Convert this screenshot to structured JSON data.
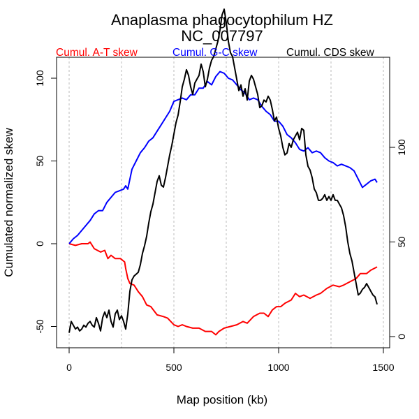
{
  "chart_data": {
    "type": "line",
    "title": "Anaplasma phagocytophilum HZ",
    "subtitle": "NC_007797",
    "xlabel": "Map position (kb)",
    "ylabel": "Cumulated normalized skew",
    "xlim": [
      -40,
      1520
    ],
    "ylim_left": [
      -62,
      112
    ],
    "ylim_right": [
      -4,
      150
    ],
    "x_ticks": [
      "0",
      "500",
      "1000",
      "1500"
    ],
    "x_tick_values": [
      0,
      500,
      1000,
      1500
    ],
    "y_left_ticks": [
      "-50",
      "0",
      "50",
      "100"
    ],
    "y_left_tick_values": [
      -50,
      0,
      50,
      100
    ],
    "y_right_ticks": [
      "0",
      "50",
      "100"
    ],
    "y_right_tick_values": [
      0,
      50,
      100
    ],
    "x_grid": [
      0,
      250,
      500,
      750,
      1000,
      1250,
      1500
    ],
    "grid": "vertical dashed",
    "legend_position": "top",
    "series": [
      {
        "name": "Cumul. A-T skew",
        "axis": "left",
        "color": "#ff0000",
        "x": [
          0,
          30,
          60,
          90,
          100,
          120,
          150,
          170,
          185,
          200,
          220,
          245,
          265,
          270,
          280,
          290,
          310,
          330,
          350,
          370,
          390,
          420,
          450,
          470,
          500,
          520,
          540,
          560,
          590,
          620,
          650,
          680,
          700,
          715,
          740,
          770,
          800,
          830,
          850,
          880,
          910,
          930,
          950,
          970,
          990,
          1010,
          1030,
          1060,
          1080,
          1100,
          1120,
          1150,
          1180,
          1200,
          1230,
          1260,
          1290,
          1310,
          1340,
          1370,
          1390,
          1420,
          1440,
          1470
        ],
        "y": [
          0,
          -1,
          0,
          0,
          1,
          -3,
          -5,
          -4,
          -9,
          -7,
          -9,
          -9,
          -11,
          -15,
          -21,
          -24,
          -25,
          -29,
          -32,
          -37,
          -38,
          -43,
          -44,
          -45,
          -49,
          -50,
          -49,
          -50,
          -51,
          -51,
          -53,
          -53,
          -55,
          -53,
          -51,
          -50,
          -49,
          -47,
          -48,
          -44,
          -42,
          -42,
          -44,
          -40,
          -38,
          -38,
          -36,
          -34,
          -30,
          -32,
          -31,
          -33,
          -31,
          -30,
          -27,
          -25,
          -26,
          -25,
          -23,
          -21,
          -18,
          -18,
          -16,
          -14
        ]
      },
      {
        "name": "Cumul. G-C skew",
        "axis": "left",
        "color": "#0000ff",
        "x": [
          0,
          20,
          40,
          60,
          80,
          100,
          120,
          140,
          160,
          180,
          200,
          220,
          240,
          260,
          270,
          280,
          300,
          320,
          340,
          360,
          380,
          400,
          420,
          440,
          460,
          480,
          500,
          520,
          540,
          560,
          580,
          600,
          620,
          640,
          660,
          680,
          700,
          720,
          740,
          760,
          780,
          800,
          820,
          840,
          860,
          880,
          900,
          920,
          940,
          960,
          980,
          1000,
          1020,
          1040,
          1060,
          1080,
          1100,
          1120,
          1140,
          1160,
          1180,
          1200,
          1220,
          1240,
          1260,
          1280,
          1300,
          1320,
          1340,
          1360,
          1380,
          1400,
          1420,
          1440,
          1460,
          1470
        ],
        "y": [
          0,
          3,
          5,
          8,
          11,
          14,
          18,
          20,
          20,
          25,
          28,
          31,
          32,
          33,
          35,
          33,
          45,
          50,
          55,
          58,
          62,
          64,
          68,
          72,
          76,
          80,
          86,
          87,
          88,
          87,
          90,
          90,
          94,
          94,
          98,
          96,
          101,
          104,
          103,
          100,
          99,
          96,
          93,
          91,
          87,
          88,
          87,
          83,
          80,
          78,
          74,
          74,
          71,
          66,
          64,
          61,
          57,
          56,
          58,
          55,
          56,
          55,
          52,
          50,
          49,
          47,
          48,
          47,
          46,
          44,
          39,
          34,
          36,
          38,
          39,
          37
        ]
      },
      {
        "name": "Cumul. CDS skew",
        "axis": "right",
        "color": "#000000",
        "x": [
          0,
          10,
          20,
          30,
          40,
          50,
          60,
          70,
          80,
          90,
          100,
          110,
          120,
          130,
          140,
          150,
          160,
          170,
          180,
          190,
          200,
          210,
          220,
          230,
          240,
          250,
          260,
          265,
          270,
          275,
          280,
          290,
          300,
          310,
          320,
          330,
          340,
          350,
          360,
          370,
          380,
          390,
          400,
          410,
          420,
          430,
          440,
          450,
          460,
          470,
          480,
          490,
          500,
          510,
          520,
          530,
          540,
          550,
          560,
          570,
          580,
          590,
          600,
          610,
          620,
          630,
          640,
          650,
          660,
          670,
          680,
          690,
          700,
          710,
          720,
          730,
          740,
          750,
          760,
          770,
          780,
          790,
          800,
          810,
          820,
          830,
          840,
          850,
          860,
          870,
          880,
          890,
          900,
          910,
          920,
          930,
          940,
          950,
          960,
          970,
          980,
          990,
          1000,
          1010,
          1020,
          1030,
          1040,
          1050,
          1060,
          1070,
          1080,
          1090,
          1100,
          1110,
          1120,
          1130,
          1140,
          1150,
          1160,
          1170,
          1180,
          1190,
          1200,
          1210,
          1220,
          1230,
          1240,
          1250,
          1260,
          1270,
          1280,
          1290,
          1300,
          1310,
          1320,
          1330,
          1340,
          1350,
          1360,
          1370,
          1380,
          1390,
          1400,
          1410,
          1420,
          1430,
          1440,
          1450,
          1460,
          1470
        ],
        "y": [
          2,
          8,
          6,
          4,
          5,
          3,
          4,
          6,
          5,
          7,
          8,
          6,
          5,
          10,
          7,
          3,
          10,
          13,
          10,
          14,
          8,
          5,
          12,
          14,
          9,
          11,
          8,
          6,
          4,
          8,
          12,
          24,
          30,
          32,
          33,
          34,
          38,
          44,
          48,
          53,
          60,
          66,
          70,
          76,
          82,
          85,
          80,
          79,
          84,
          90,
          96,
          101,
          107,
          113,
          117,
          124,
          132,
          136,
          141,
          138,
          132,
          128,
          134,
          136,
          138,
          144,
          140,
          132,
          136,
          142,
          146,
          148,
          152,
          156,
          162,
          170,
          173,
          166,
          156,
          150,
          148,
          142,
          136,
          130,
          133,
          127,
          131,
          125,
          135,
          138,
          136,
          132,
          128,
          121,
          122,
          125,
          124,
          127,
          125,
          120,
          114,
          116,
          110,
          106,
          100,
          96,
          97,
          102,
          100,
          104,
          106,
          108,
          104,
          110,
          109,
          96,
          90,
          88,
          84,
          78,
          76,
          72,
          72,
          73,
          75,
          72,
          74,
          72,
          75,
          72,
          72,
          70,
          68,
          64,
          58,
          50,
          44,
          40,
          34,
          28,
          22,
          23,
          25,
          26,
          28,
          26,
          24,
          22,
          21,
          17
        ]
      }
    ]
  }
}
